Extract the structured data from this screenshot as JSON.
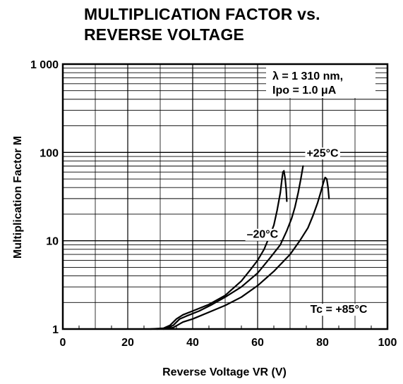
{
  "chart_data": {
    "type": "line",
    "title_line1": "MULTIPLICATION FACTOR vs.",
    "title_line2": "REVERSE VOLTAGE",
    "xlabel": "Reverse Voltage  VR (V)",
    "ylabel": "Multiplication Factor  M",
    "x_axis": {
      "min": 0,
      "max": 100,
      "ticks": [
        0,
        20,
        40,
        60,
        80,
        100
      ],
      "tick_labels": [
        "0",
        "20",
        "40",
        "60",
        "80",
        "100"
      ]
    },
    "y_axis": {
      "scale": "log",
      "min": 1,
      "max": 1000,
      "ticks": [
        1,
        10,
        100,
        1000
      ],
      "tick_labels": [
        "1",
        "10",
        "100",
        "1 000"
      ]
    },
    "grid": true,
    "conditions": {
      "wavelength": "λ = 1 310 nm,",
      "photocurrent": "Ipo = 1.0 μA"
    },
    "series": [
      {
        "name": "–20°C",
        "points": [
          [
            27,
            1.0
          ],
          [
            31,
            1.02
          ],
          [
            33,
            1.1
          ],
          [
            35,
            1.3
          ],
          [
            37,
            1.45
          ],
          [
            40,
            1.6
          ],
          [
            45,
            1.9
          ],
          [
            50,
            2.4
          ],
          [
            55,
            3.5
          ],
          [
            58,
            4.8
          ],
          [
            60,
            6
          ],
          [
            62,
            8
          ],
          [
            64,
            12
          ],
          [
            65,
            15
          ],
          [
            66,
            22
          ],
          [
            67,
            35
          ],
          [
            67.5,
            50
          ],
          [
            67.8,
            60
          ],
          [
            68.1,
            62
          ],
          [
            68.5,
            50
          ],
          [
            68.8,
            38
          ],
          [
            69,
            28
          ]
        ]
      },
      {
        "name": "+25°C",
        "points": [
          [
            29,
            1.0
          ],
          [
            32,
            1.02
          ],
          [
            34,
            1.1
          ],
          [
            36,
            1.3
          ],
          [
            38,
            1.4
          ],
          [
            42,
            1.6
          ],
          [
            46,
            1.9
          ],
          [
            50,
            2.3
          ],
          [
            55,
            3.0
          ],
          [
            60,
            4.3
          ],
          [
            64,
            6.5
          ],
          [
            67,
            9
          ],
          [
            69,
            13
          ],
          [
            70.5,
            18
          ],
          [
            71.5,
            24
          ],
          [
            72.5,
            35
          ],
          [
            73.3,
            50
          ],
          [
            74,
            70
          ]
        ]
      },
      {
        "name": "Tc = +85°C",
        "points": [
          [
            31,
            1.0
          ],
          [
            34,
            1.04
          ],
          [
            37,
            1.2
          ],
          [
            40,
            1.3
          ],
          [
            45,
            1.55
          ],
          [
            50,
            1.85
          ],
          [
            55,
            2.3
          ],
          [
            60,
            3.1
          ],
          [
            65,
            4.5
          ],
          [
            70,
            7
          ],
          [
            73,
            10
          ],
          [
            75.5,
            14
          ],
          [
            77,
            19
          ],
          [
            78.5,
            27
          ],
          [
            79.5,
            36
          ],
          [
            80.3,
            46
          ],
          [
            80.8,
            52
          ],
          [
            81.3,
            50
          ],
          [
            81.7,
            40
          ],
          [
            82,
            30
          ]
        ]
      }
    ],
    "annotations": [
      {
        "text": "–20°C",
        "x": 61.5,
        "y": 12
      },
      {
        "text": "+25°C",
        "x": 80,
        "y": 100
      },
      {
        "text": "Tc = +85°C",
        "x": 85,
        "y": 1.7
      }
    ]
  }
}
